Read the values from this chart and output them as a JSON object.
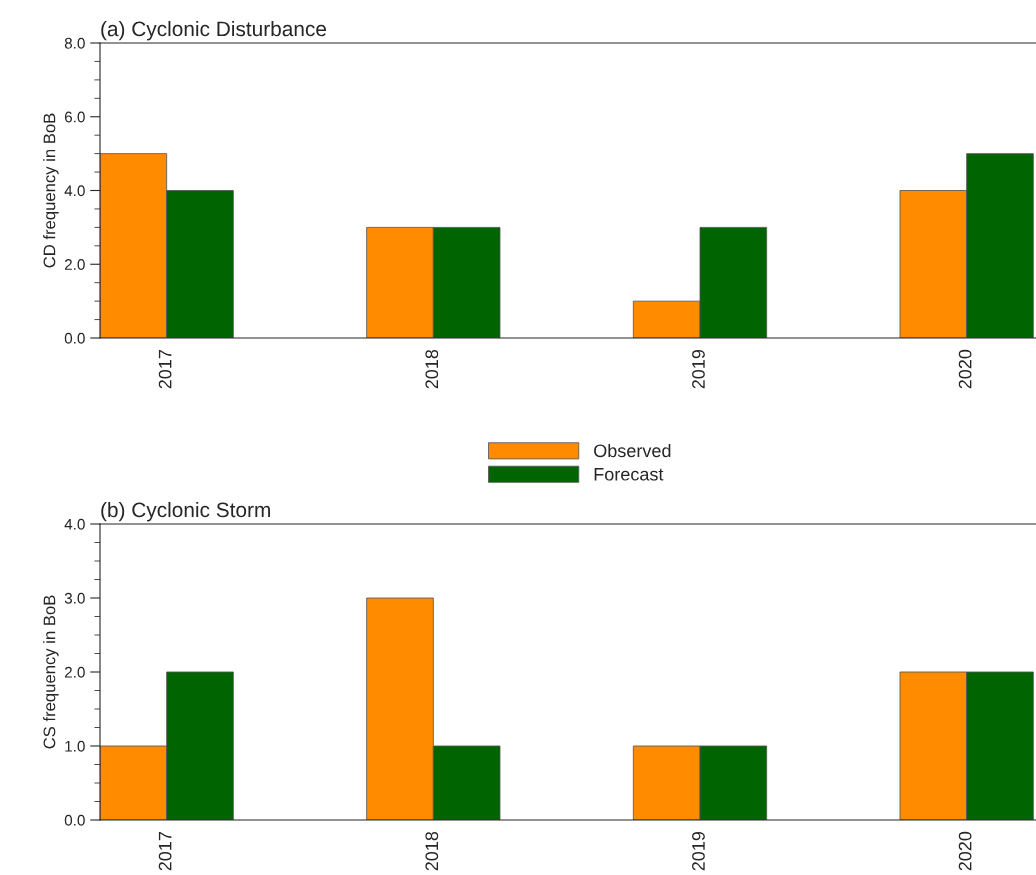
{
  "chart_data": [
    {
      "type": "bar",
      "title": "(a) Cyclonic Disturbance",
      "ylabel": "CD frequency in BoB",
      "categories": [
        "2017",
        "2018",
        "2019",
        "2020"
      ],
      "series": [
        {
          "name": "Observed",
          "color": "#ff8c00",
          "values": [
            5,
            3,
            1,
            4
          ]
        },
        {
          "name": "Forecast",
          "color": "#006400",
          "values": [
            4,
            3,
            3,
            5
          ]
        }
      ],
      "ylim": [
        0,
        8
      ],
      "yticks": [
        {
          "value": 0,
          "label": "0.0"
        },
        {
          "value": 2,
          "label": "2.0"
        },
        {
          "value": 4,
          "label": "4.0"
        },
        {
          "value": 6,
          "label": "6.0"
        },
        {
          "value": 8,
          "label": "8.0"
        }
      ],
      "grid": false,
      "legend": "bottom"
    },
    {
      "type": "bar",
      "title": "(b) Cyclonic Storm",
      "ylabel": "CS frequency in BoB",
      "categories": [
        "2017",
        "2018",
        "2019",
        "2020"
      ],
      "series": [
        {
          "color": "#ff8c00",
          "values": [
            1,
            3,
            1,
            2
          ]
        },
        {
          "color": "#006400",
          "values": [
            2,
            1,
            1,
            2
          ]
        }
      ],
      "ylim": [
        0,
        4
      ],
      "yticks": [
        {
          "value": 0,
          "label": "0.0"
        },
        {
          "value": 1,
          "label": "1.0"
        },
        {
          "value": 2,
          "label": "2.0"
        },
        {
          "value": 3,
          "label": "3.0"
        },
        {
          "value": 4,
          "label": "4.0"
        }
      ],
      "grid": false,
      "legend": false
    }
  ]
}
